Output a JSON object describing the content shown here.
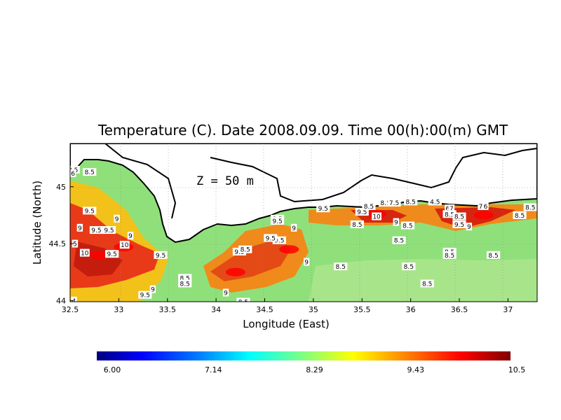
{
  "title": "Temperature (C). Date 2008.09.09. Time 00(h):00(m) GMT",
  "depth_label": "Z = 50 m",
  "x_axis": {
    "label": "Longitude (East)",
    "range": [
      32.5,
      37.3
    ],
    "ticks": [
      {
        "value": 32.5,
        "label": "32.5"
      },
      {
        "value": 33,
        "label": "33"
      },
      {
        "value": 33.5,
        "label": "33.5"
      },
      {
        "value": 34,
        "label": "34"
      },
      {
        "value": 34.5,
        "label": "34.5"
      },
      {
        "value": 35,
        "label": "35"
      },
      {
        "value": 35.5,
        "label": "35.5"
      },
      {
        "value": 36,
        "label": "36"
      },
      {
        "value": 36.5,
        "label": "36.5"
      },
      {
        "value": 37,
        "label": "37"
      }
    ]
  },
  "y_axis": {
    "label": "Latitude (North)",
    "range": [
      43.99,
      45.38
    ],
    "ticks": [
      {
        "value": 44,
        "label": "44"
      },
      {
        "value": 44.5,
        "label": "44.5"
      },
      {
        "value": 45,
        "label": "45"
      }
    ]
  },
  "colorbar": {
    "min": 6.0,
    "max": 10.5,
    "tick_labels": [
      "6.00",
      "7.14",
      "8.29",
      "9.43",
      "10.5"
    ],
    "colors": [
      "#00007f",
      "#0000ff",
      "#0080ff",
      "#00ffff",
      "#80ff80",
      "#ffff00",
      "#ff8000",
      "#ff0000",
      "#7f0000"
    ]
  },
  "chart_data": {
    "type": "heatmap",
    "title": "Temperature (C). Date 2008.09.09. Time 00(h):00(m) GMT",
    "xlabel": "Longitude (East)",
    "ylabel": "Latitude (North)",
    "xlim": [
      32.5,
      37.3
    ],
    "ylim": [
      43.99,
      45.38
    ],
    "grid": true,
    "annotation": "Z = 50 m",
    "colorbar_range": [
      6.0,
      10.5
    ],
    "hot_spots": [
      {
        "lon": 32.8,
        "lat": 44.4,
        "value": 10
      },
      {
        "lon": 33.05,
        "lat": 44.47,
        "value": 10
      },
      {
        "lon": 34.2,
        "lat": 44.25,
        "value": 10.2
      },
      {
        "lon": 34.75,
        "lat": 44.45,
        "value": 9.9
      },
      {
        "lon": 35.65,
        "lat": 44.76,
        "value": 10
      },
      {
        "lon": 36.75,
        "lat": 44.75,
        "value": 10.1
      }
    ],
    "contour_labels": [
      {
        "lon": 32.53,
        "lat": 45.15,
        "label": "8.5"
      },
      {
        "lon": 32.53,
        "lat": 45.12,
        "label": "6"
      },
      {
        "lon": 32.7,
        "lat": 45.13,
        "label": "8.5"
      },
      {
        "lon": 32.7,
        "lat": 44.79,
        "label": "9.5"
      },
      {
        "lon": 32.98,
        "lat": 44.72,
        "label": "9"
      },
      {
        "lon": 32.6,
        "lat": 44.64,
        "label": "9"
      },
      {
        "lon": 32.77,
        "lat": 44.62,
        "label": "9.5"
      },
      {
        "lon": 32.9,
        "lat": 44.62,
        "label": "9.5"
      },
      {
        "lon": 32.55,
        "lat": 44.5,
        "label": "5"
      },
      {
        "lon": 32.65,
        "lat": 44.42,
        "label": "10"
      },
      {
        "lon": 33.06,
        "lat": 44.49,
        "label": "10"
      },
      {
        "lon": 33.12,
        "lat": 44.57,
        "label": "9"
      },
      {
        "lon": 32.93,
        "lat": 44.41,
        "label": "9.5"
      },
      {
        "lon": 33.43,
        "lat": 44.4,
        "label": "9.5"
      },
      {
        "lon": 33.68,
        "lat": 44.2,
        "label": "8.5"
      },
      {
        "lon": 33.68,
        "lat": 44.15,
        "label": "8.5"
      },
      {
        "lon": 33.35,
        "lat": 44.1,
        "label": "9"
      },
      {
        "lon": 33.27,
        "lat": 44.05,
        "label": "9.5"
      },
      {
        "lon": 32.54,
        "lat": 44.0,
        "label": "4"
      },
      {
        "lon": 34.24,
        "lat": 44.43,
        "label": "9.5"
      },
      {
        "lon": 34.1,
        "lat": 44.07,
        "label": "9"
      },
      {
        "lon": 34.28,
        "lat": 43.99,
        "label": "8.5"
      },
      {
        "lon": 34.65,
        "lat": 44.53,
        "label": "9.5"
      },
      {
        "lon": 34.8,
        "lat": 44.64,
        "label": "9"
      },
      {
        "lon": 34.93,
        "lat": 44.34,
        "label": "9"
      },
      {
        "lon": 34.63,
        "lat": 44.72,
        "label": "8.5"
      },
      {
        "lon": 34.63,
        "lat": 44.7,
        "label": "9.5"
      },
      {
        "lon": 35.1,
        "lat": 44.81,
        "label": "9.5"
      },
      {
        "lon": 35.5,
        "lat": 44.78,
        "label": "9.5"
      },
      {
        "lon": 35.45,
        "lat": 44.67,
        "label": "8.5"
      },
      {
        "lon": 35.65,
        "lat": 44.74,
        "label": "10"
      },
      {
        "lon": 35.57,
        "lat": 44.83,
        "label": "8.5"
      },
      {
        "lon": 35.85,
        "lat": 44.69,
        "label": "9"
      },
      {
        "lon": 35.74,
        "lat": 44.86,
        "label": "8.5"
      },
      {
        "lon": 35.83,
        "lat": 44.86,
        "label": "7.5"
      },
      {
        "lon": 36.0,
        "lat": 44.87,
        "label": "8.5"
      },
      {
        "lon": 35.97,
        "lat": 44.66,
        "label": "8.5"
      },
      {
        "lon": 35.88,
        "lat": 44.53,
        "label": "8.5"
      },
      {
        "lon": 36.25,
        "lat": 44.87,
        "label": "4.5"
      },
      {
        "lon": 36.38,
        "lat": 44.81,
        "label": "6"
      },
      {
        "lon": 36.42,
        "lat": 44.81,
        "label": "7"
      },
      {
        "lon": 36.4,
        "lat": 44.76,
        "label": "8.5"
      },
      {
        "lon": 36.5,
        "lat": 44.74,
        "label": "8.5"
      },
      {
        "lon": 36.5,
        "lat": 44.67,
        "label": "9.5"
      },
      {
        "lon": 36.6,
        "lat": 44.65,
        "label": "9"
      },
      {
        "lon": 36.72,
        "lat": 44.83,
        "label": "7"
      },
      {
        "lon": 36.77,
        "lat": 44.83,
        "label": "6"
      },
      {
        "lon": 37.23,
        "lat": 44.82,
        "label": "8.5"
      },
      {
        "lon": 37.12,
        "lat": 44.75,
        "label": "8.5"
      },
      {
        "lon": 36.4,
        "lat": 44.43,
        "label": "8.5"
      },
      {
        "lon": 36.4,
        "lat": 44.4,
        "label": "8.5"
      },
      {
        "lon": 36.85,
        "lat": 44.4,
        "label": "8.5"
      },
      {
        "lon": 35.98,
        "lat": 44.3,
        "label": "8.5"
      },
      {
        "lon": 35.28,
        "lat": 44.3,
        "label": "8.5"
      },
      {
        "lon": 36.17,
        "lat": 44.15,
        "label": "8.5"
      },
      {
        "lon": 34.3,
        "lat": 44.45,
        "label": "8.5"
      },
      {
        "lon": 34.56,
        "lat": 44.55,
        "label": "9.5"
      }
    ]
  }
}
